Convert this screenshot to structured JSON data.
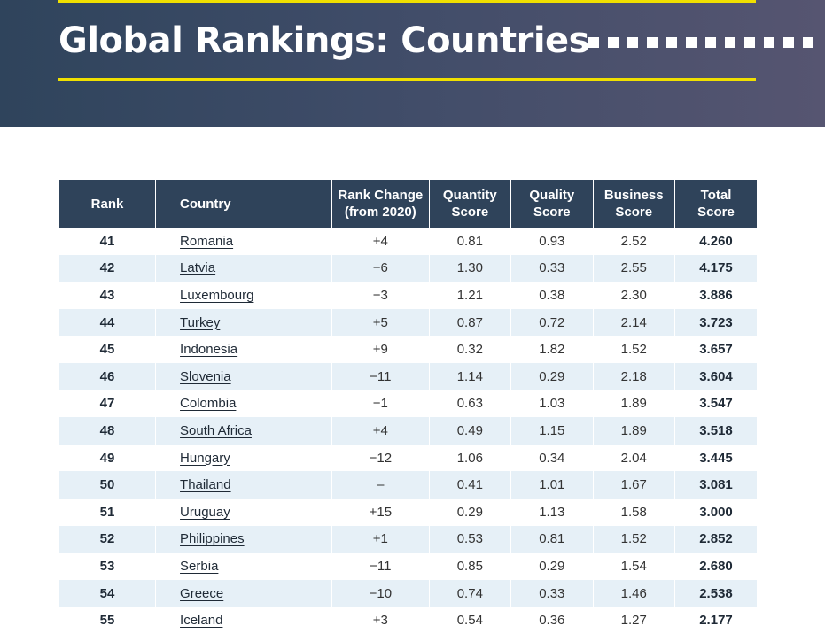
{
  "header": {
    "title": "Global Rankings: Countries",
    "background_gradient": [
      "#2f445c",
      "#565571"
    ],
    "accent_color": "#f0e000",
    "decorative_square_count": 12
  },
  "table": {
    "header_color": "#2f435a",
    "stripe_color": "#e6f0f7",
    "columns": [
      {
        "key": "rank",
        "label": "Rank"
      },
      {
        "key": "country",
        "label": "Country"
      },
      {
        "key": "rank_change",
        "label": "Rank Change\n(from 2020)"
      },
      {
        "key": "quantity",
        "label": "Quantity\nScore"
      },
      {
        "key": "quality",
        "label": "Quality\nScore"
      },
      {
        "key": "business",
        "label": "Business\nScore"
      },
      {
        "key": "total",
        "label": "Total\nScore"
      }
    ],
    "rows": [
      {
        "rank": "41",
        "country": "Romania",
        "rank_change": "+4",
        "quantity": "0.81",
        "quality": "0.93",
        "business": "2.52",
        "total": "4.260"
      },
      {
        "rank": "42",
        "country": "Latvia",
        "rank_change": "−6",
        "quantity": "1.30",
        "quality": "0.33",
        "business": "2.55",
        "total": "4.175"
      },
      {
        "rank": "43",
        "country": "Luxembourg",
        "rank_change": "−3",
        "quantity": "1.21",
        "quality": "0.38",
        "business": "2.30",
        "total": "3.886"
      },
      {
        "rank": "44",
        "country": "Turkey",
        "rank_change": "+5",
        "quantity": "0.87",
        "quality": "0.72",
        "business": "2.14",
        "total": "3.723"
      },
      {
        "rank": "45",
        "country": "Indonesia",
        "rank_change": "+9",
        "quantity": "0.32",
        "quality": "1.82",
        "business": "1.52",
        "total": "3.657"
      },
      {
        "rank": "46",
        "country": "Slovenia",
        "rank_change": "−11",
        "quantity": "1.14",
        "quality": "0.29",
        "business": "2.18",
        "total": "3.604"
      },
      {
        "rank": "47",
        "country": "Colombia",
        "rank_change": "−1",
        "quantity": "0.63",
        "quality": "1.03",
        "business": "1.89",
        "total": "3.547"
      },
      {
        "rank": "48",
        "country": "South Africa",
        "rank_change": "+4",
        "quantity": "0.49",
        "quality": "1.15",
        "business": "1.89",
        "total": "3.518"
      },
      {
        "rank": "49",
        "country": "Hungary",
        "rank_change": "−12",
        "quantity": "1.06",
        "quality": "0.34",
        "business": "2.04",
        "total": "3.445"
      },
      {
        "rank": "50",
        "country": "Thailand",
        "rank_change": "–",
        "quantity": "0.41",
        "quality": "1.01",
        "business": "1.67",
        "total": "3.081"
      },
      {
        "rank": "51",
        "country": "Uruguay",
        "rank_change": "+15",
        "quantity": "0.29",
        "quality": "1.13",
        "business": "1.58",
        "total": "3.000"
      },
      {
        "rank": "52",
        "country": "Philippines",
        "rank_change": "+1",
        "quantity": "0.53",
        "quality": "0.81",
        "business": "1.52",
        "total": "2.852"
      },
      {
        "rank": "53",
        "country": "Serbia",
        "rank_change": "−11",
        "quantity": "0.85",
        "quality": "0.29",
        "business": "1.54",
        "total": "2.680"
      },
      {
        "rank": "54",
        "country": "Greece",
        "rank_change": "−10",
        "quantity": "0.74",
        "quality": "0.33",
        "business": "1.46",
        "total": "2.538"
      },
      {
        "rank": "55",
        "country": "Iceland",
        "rank_change": "+3",
        "quantity": "0.54",
        "quality": "0.36",
        "business": "1.27",
        "total": "2.177"
      }
    ]
  }
}
